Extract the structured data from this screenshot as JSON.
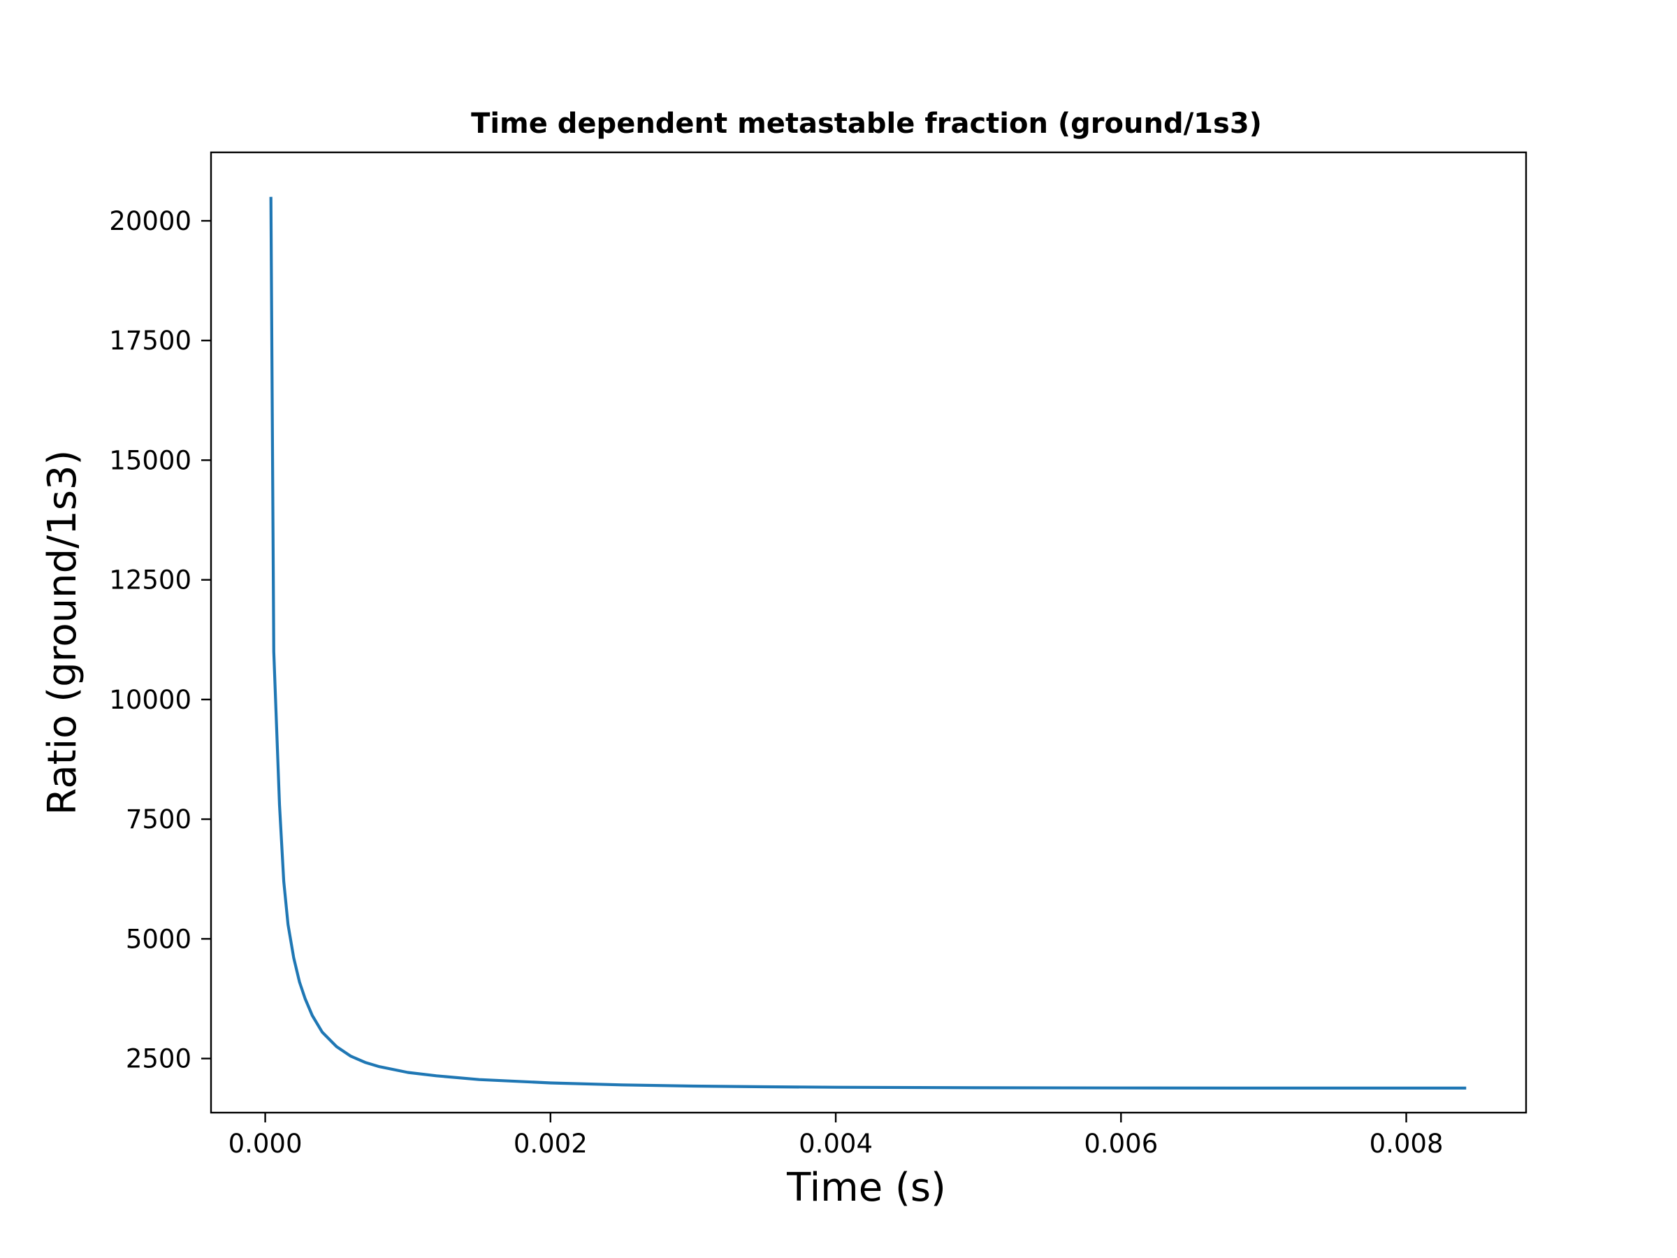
{
  "chart_data": {
    "type": "line",
    "title": "Time dependent metastable fraction (ground/1s3)",
    "xlabel": "Time (s)",
    "ylabel": "Ratio (ground/1s3)",
    "xlim": [
      -0.00038,
      0.00884
    ],
    "ylim": [
      1370,
      21430
    ],
    "xticks": [
      0.0,
      0.002,
      0.004,
      0.006,
      0.008
    ],
    "xtick_labels": [
      "0.000",
      "0.002",
      "0.004",
      "0.006",
      "0.008"
    ],
    "yticks": [
      2500,
      5000,
      7500,
      10000,
      12500,
      15000,
      17500,
      20000
    ],
    "ytick_labels": [
      "2500",
      "5000",
      "7500",
      "10000",
      "12500",
      "15000",
      "17500",
      "20000"
    ],
    "grid": false,
    "series": [
      {
        "color": "#1f77b4",
        "x": [
          4e-05,
          6e-05,
          0.0001,
          0.00013,
          0.00016,
          0.0002,
          0.00024,
          0.00028,
          0.00033,
          0.0004,
          0.0005,
          0.0006,
          0.0007,
          0.0008,
          0.001,
          0.0012,
          0.0015,
          0.002,
          0.0025,
          0.003,
          0.0035,
          0.004,
          0.005,
          0.006,
          0.007,
          0.008,
          0.00842
        ],
        "y": [
          20500,
          11000,
          7800,
          6200,
          5300,
          4600,
          4100,
          3750,
          3400,
          3050,
          2750,
          2550,
          2420,
          2330,
          2210,
          2140,
          2060,
          1990,
          1950,
          1925,
          1910,
          1900,
          1890,
          1885,
          1883,
          1882,
          1882
        ]
      }
    ]
  }
}
